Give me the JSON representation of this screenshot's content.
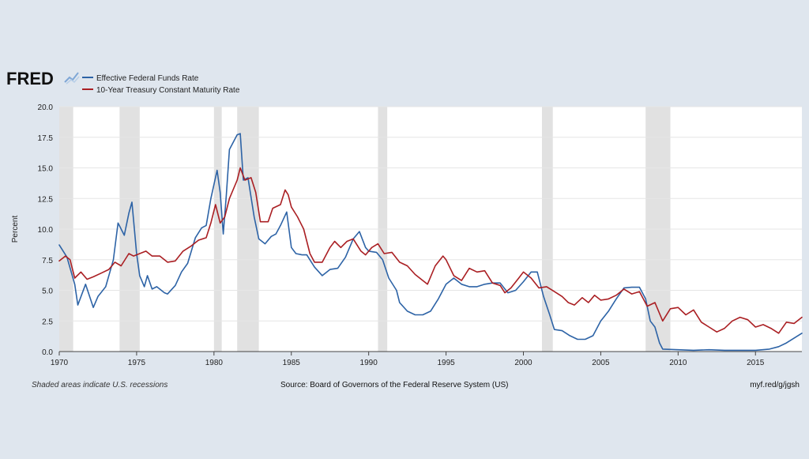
{
  "brand": {
    "logo_text": "FRED"
  },
  "footer": {
    "left_note": "Shaded areas indicate U.S. recessions",
    "source": "Source: Board of Governors of the Federal Reserve System (US)",
    "link": "myf.red/g/jgsh"
  },
  "colors": {
    "background": "#dfe6ee",
    "plot_background": "#ffffff",
    "recession_shade": "#e1e1e1",
    "gridline": "#e6e6e6",
    "series_fed_funds": "#2d63a6",
    "series_treasury": "#aa1f23"
  },
  "chart_data": {
    "type": "line",
    "title": "",
    "xlabel": "",
    "ylabel": "Percent",
    "xlim": [
      1970,
      2018
    ],
    "ylim": [
      0,
      20
    ],
    "grid": true,
    "legend_position": "top-left",
    "x_ticks": [
      "1970",
      "1975",
      "1980",
      "1985",
      "1990",
      "1995",
      "2000",
      "2005",
      "2010",
      "2015"
    ],
    "y_ticks": [
      "0.0",
      "2.5",
      "5.0",
      "7.5",
      "10.0",
      "12.5",
      "15.0",
      "17.5",
      "20.0"
    ],
    "recessions": [
      [
        1970.0,
        1970.9
      ],
      [
        1973.9,
        1975.2
      ],
      [
        1980.0,
        1980.5
      ],
      [
        1981.5,
        1982.9
      ],
      [
        1990.6,
        1991.2
      ],
      [
        2001.2,
        2001.9
      ],
      [
        2007.9,
        2009.5
      ]
    ],
    "series": [
      {
        "name": "Effective Federal Funds Rate",
        "color": "#2d63a6",
        "points": [
          [
            1970.0,
            8.7
          ],
          [
            1970.5,
            7.7
          ],
          [
            1971.0,
            5.5
          ],
          [
            1971.2,
            3.8
          ],
          [
            1971.7,
            5.5
          ],
          [
            1972.2,
            3.6
          ],
          [
            1972.5,
            4.5
          ],
          [
            1973.0,
            5.3
          ],
          [
            1973.5,
            7.5
          ],
          [
            1973.8,
            10.5
          ],
          [
            1974.2,
            9.5
          ],
          [
            1974.5,
            11.3
          ],
          [
            1974.7,
            12.2
          ],
          [
            1975.0,
            8.0
          ],
          [
            1975.2,
            6.2
          ],
          [
            1975.5,
            5.3
          ],
          [
            1975.7,
            6.2
          ],
          [
            1976.0,
            5.1
          ],
          [
            1976.3,
            5.3
          ],
          [
            1976.8,
            4.8
          ],
          [
            1977.0,
            4.7
          ],
          [
            1977.5,
            5.4
          ],
          [
            1977.9,
            6.5
          ],
          [
            1978.3,
            7.2
          ],
          [
            1978.8,
            9.3
          ],
          [
            1979.2,
            10.1
          ],
          [
            1979.5,
            10.3
          ],
          [
            1979.8,
            12.5
          ],
          [
            1980.2,
            14.8
          ],
          [
            1980.4,
            13.0
          ],
          [
            1980.6,
            9.6
          ],
          [
            1980.8,
            12.8
          ],
          [
            1981.0,
            16.5
          ],
          [
            1981.5,
            17.7
          ],
          [
            1981.7,
            17.8
          ],
          [
            1981.9,
            14.0
          ],
          [
            1982.2,
            14.2
          ],
          [
            1982.6,
            11.0
          ],
          [
            1982.9,
            9.2
          ],
          [
            1983.3,
            8.8
          ],
          [
            1983.7,
            9.4
          ],
          [
            1984.0,
            9.6
          ],
          [
            1984.3,
            10.3
          ],
          [
            1984.7,
            11.4
          ],
          [
            1985.0,
            8.5
          ],
          [
            1985.3,
            8.0
          ],
          [
            1985.7,
            7.9
          ],
          [
            1986.0,
            7.9
          ],
          [
            1986.5,
            6.9
          ],
          [
            1987.0,
            6.2
          ],
          [
            1987.5,
            6.7
          ],
          [
            1988.0,
            6.8
          ],
          [
            1988.5,
            7.7
          ],
          [
            1989.0,
            9.2
          ],
          [
            1989.4,
            9.8
          ],
          [
            1989.8,
            8.5
          ],
          [
            1990.0,
            8.2
          ],
          [
            1990.5,
            8.1
          ],
          [
            1990.9,
            7.5
          ],
          [
            1991.3,
            6.0
          ],
          [
            1991.8,
            5.0
          ],
          [
            1992.0,
            4.0
          ],
          [
            1992.5,
            3.3
          ],
          [
            1993.0,
            3.0
          ],
          [
            1993.5,
            3.0
          ],
          [
            1994.0,
            3.3
          ],
          [
            1994.5,
            4.3
          ],
          [
            1995.0,
            5.5
          ],
          [
            1995.5,
            6.0
          ],
          [
            1996.0,
            5.5
          ],
          [
            1996.5,
            5.3
          ],
          [
            1997.0,
            5.3
          ],
          [
            1997.5,
            5.5
          ],
          [
            1998.0,
            5.6
          ],
          [
            1998.5,
            5.6
          ],
          [
            1999.0,
            4.8
          ],
          [
            1999.5,
            5.0
          ],
          [
            2000.0,
            5.7
          ],
          [
            2000.5,
            6.5
          ],
          [
            2000.9,
            6.5
          ],
          [
            2001.3,
            4.5
          ],
          [
            2001.7,
            3.0
          ],
          [
            2002.0,
            1.8
          ],
          [
            2002.5,
            1.7
          ],
          [
            2003.0,
            1.3
          ],
          [
            2003.5,
            1.0
          ],
          [
            2004.0,
            1.0
          ],
          [
            2004.5,
            1.3
          ],
          [
            2005.0,
            2.5
          ],
          [
            2005.5,
            3.3
          ],
          [
            2006.0,
            4.3
          ],
          [
            2006.5,
            5.2
          ],
          [
            2007.0,
            5.25
          ],
          [
            2007.5,
            5.25
          ],
          [
            2007.9,
            4.3
          ],
          [
            2008.2,
            2.5
          ],
          [
            2008.5,
            2.0
          ],
          [
            2008.8,
            0.7
          ],
          [
            2009.0,
            0.2
          ],
          [
            2010.0,
            0.15
          ],
          [
            2011.0,
            0.1
          ],
          [
            2012.0,
            0.15
          ],
          [
            2013.0,
            0.1
          ],
          [
            2014.0,
            0.1
          ],
          [
            2015.0,
            0.1
          ],
          [
            2015.9,
            0.2
          ],
          [
            2016.5,
            0.4
          ],
          [
            2017.0,
            0.7
          ],
          [
            2017.5,
            1.1
          ],
          [
            2018.0,
            1.5
          ]
        ]
      },
      {
        "name": "10-Year Treasury Constant Maturity Rate",
        "color": "#aa1f23",
        "points": [
          [
            1970.0,
            7.4
          ],
          [
            1970.4,
            7.8
          ],
          [
            1970.7,
            7.5
          ],
          [
            1971.0,
            6.0
          ],
          [
            1971.4,
            6.5
          ],
          [
            1971.8,
            5.9
          ],
          [
            1972.2,
            6.1
          ],
          [
            1972.7,
            6.4
          ],
          [
            1973.2,
            6.7
          ],
          [
            1973.6,
            7.3
          ],
          [
            1974.0,
            7.0
          ],
          [
            1974.5,
            8.0
          ],
          [
            1974.8,
            7.8
          ],
          [
            1975.2,
            8.0
          ],
          [
            1975.6,
            8.2
          ],
          [
            1976.0,
            7.8
          ],
          [
            1976.5,
            7.8
          ],
          [
            1977.0,
            7.3
          ],
          [
            1977.5,
            7.4
          ],
          [
            1978.0,
            8.2
          ],
          [
            1978.5,
            8.6
          ],
          [
            1979.0,
            9.1
          ],
          [
            1979.5,
            9.3
          ],
          [
            1979.8,
            10.5
          ],
          [
            1980.1,
            12.0
          ],
          [
            1980.4,
            10.5
          ],
          [
            1980.7,
            11.0
          ],
          [
            1981.0,
            12.5
          ],
          [
            1981.5,
            14.0
          ],
          [
            1981.7,
            15.0
          ],
          [
            1982.0,
            14.0
          ],
          [
            1982.4,
            14.2
          ],
          [
            1982.7,
            13.0
          ],
          [
            1983.0,
            10.6
          ],
          [
            1983.5,
            10.6
          ],
          [
            1983.8,
            11.7
          ],
          [
            1984.3,
            12.0
          ],
          [
            1984.6,
            13.2
          ],
          [
            1984.8,
            12.8
          ],
          [
            1985.0,
            11.8
          ],
          [
            1985.4,
            11.0
          ],
          [
            1985.8,
            10.0
          ],
          [
            1986.2,
            8.0
          ],
          [
            1986.5,
            7.3
          ],
          [
            1987.0,
            7.3
          ],
          [
            1987.5,
            8.5
          ],
          [
            1987.8,
            9.0
          ],
          [
            1988.2,
            8.5
          ],
          [
            1988.6,
            9.0
          ],
          [
            1989.0,
            9.2
          ],
          [
            1989.5,
            8.2
          ],
          [
            1989.8,
            7.9
          ],
          [
            1990.2,
            8.5
          ],
          [
            1990.6,
            8.8
          ],
          [
            1991.0,
            8.0
          ],
          [
            1991.5,
            8.1
          ],
          [
            1992.0,
            7.3
          ],
          [
            1992.5,
            7.0
          ],
          [
            1993.0,
            6.3
          ],
          [
            1993.5,
            5.8
          ],
          [
            1993.8,
            5.5
          ],
          [
            1994.3,
            7.0
          ],
          [
            1994.8,
            7.8
          ],
          [
            1995.0,
            7.5
          ],
          [
            1995.5,
            6.2
          ],
          [
            1996.0,
            5.8
          ],
          [
            1996.5,
            6.8
          ],
          [
            1997.0,
            6.5
          ],
          [
            1997.5,
            6.6
          ],
          [
            1998.0,
            5.6
          ],
          [
            1998.5,
            5.4
          ],
          [
            1998.8,
            4.8
          ],
          [
            1999.2,
            5.2
          ],
          [
            1999.7,
            6.0
          ],
          [
            2000.0,
            6.5
          ],
          [
            2000.5,
            6.0
          ],
          [
            2001.0,
            5.2
          ],
          [
            2001.5,
            5.3
          ],
          [
            2002.0,
            4.9
          ],
          [
            2002.5,
            4.5
          ],
          [
            2002.9,
            4.0
          ],
          [
            2003.3,
            3.8
          ],
          [
            2003.8,
            4.4
          ],
          [
            2004.2,
            4.0
          ],
          [
            2004.6,
            4.6
          ],
          [
            2005.0,
            4.2
          ],
          [
            2005.5,
            4.3
          ],
          [
            2006.0,
            4.6
          ],
          [
            2006.5,
            5.1
          ],
          [
            2007.0,
            4.7
          ],
          [
            2007.5,
            4.9
          ],
          [
            2008.0,
            3.7
          ],
          [
            2008.5,
            4.0
          ],
          [
            2009.0,
            2.5
          ],
          [
            2009.5,
            3.5
          ],
          [
            2010.0,
            3.6
          ],
          [
            2010.5,
            3.0
          ],
          [
            2011.0,
            3.4
          ],
          [
            2011.5,
            2.4
          ],
          [
            2012.0,
            2.0
          ],
          [
            2012.5,
            1.6
          ],
          [
            2013.0,
            1.9
          ],
          [
            2013.5,
            2.5
          ],
          [
            2014.0,
            2.8
          ],
          [
            2014.5,
            2.6
          ],
          [
            2015.0,
            2.0
          ],
          [
            2015.5,
            2.2
          ],
          [
            2016.0,
            1.9
          ],
          [
            2016.5,
            1.5
          ],
          [
            2017.0,
            2.4
          ],
          [
            2017.5,
            2.3
          ],
          [
            2018.0,
            2.8
          ]
        ]
      }
    ]
  }
}
